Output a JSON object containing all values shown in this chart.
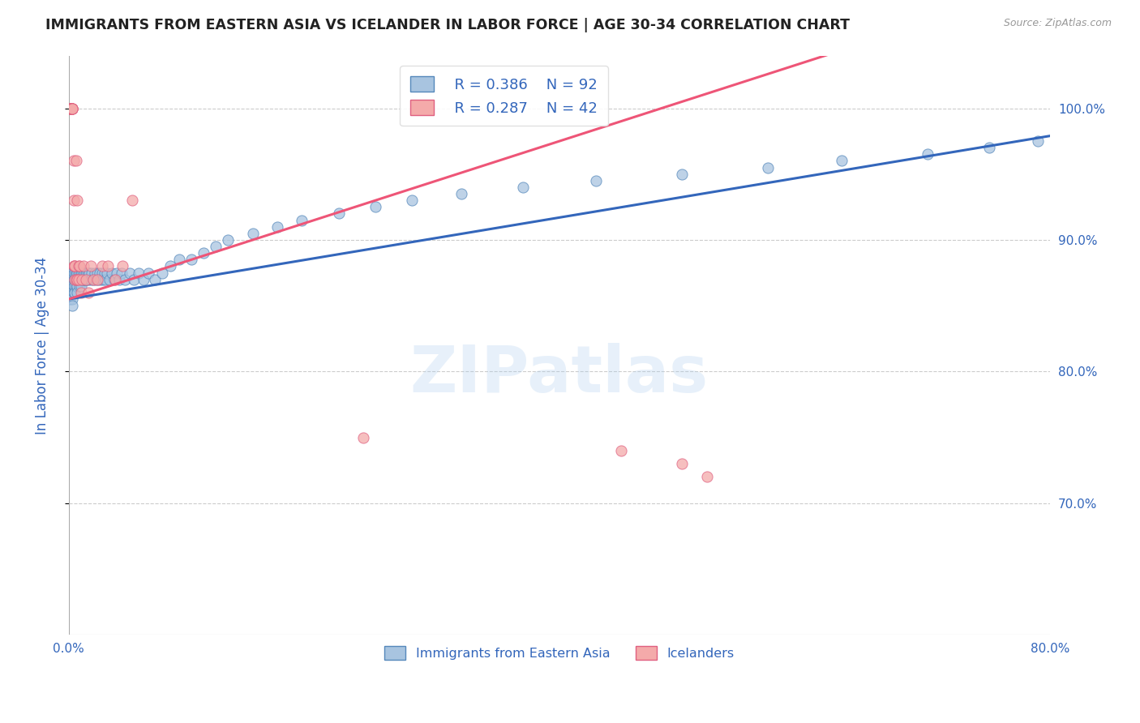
{
  "title": "IMMIGRANTS FROM EASTERN ASIA VS ICELANDER IN LABOR FORCE | AGE 30-34 CORRELATION CHART",
  "source": "Source: ZipAtlas.com",
  "ylabel_left": "In Labor Force | Age 30-34",
  "xlim": [
    0.0,
    0.8
  ],
  "ylim": [
    0.6,
    1.04
  ],
  "x_ticks": [
    0.0,
    0.8
  ],
  "x_tick_labels": [
    "0.0%",
    "80.0%"
  ],
  "y_ticks": [
    0.7,
    0.8,
    0.9,
    1.0
  ],
  "y_tick_labels": [
    "70.0%",
    "80.0%",
    "90.0%",
    "100.0%"
  ],
  "legend_r_blue": "R = 0.386",
  "legend_n_blue": "N = 92",
  "legend_r_pink": "R = 0.287",
  "legend_n_pink": "N = 42",
  "legend_label_blue": "Immigrants from Eastern Asia",
  "legend_label_pink": "Icelanders",
  "blue_fill": "#A8C4E0",
  "blue_edge": "#5588BB",
  "pink_fill": "#F4AAAA",
  "pink_edge": "#E06080",
  "blue_line": "#3366BB",
  "pink_line": "#EE5577",
  "title_color": "#222222",
  "axis_label_color": "#3366BB",
  "tick_color": "#3366BB",
  "grid_color": "#CCCCCC",
  "watermark_color": "#AACCEE",
  "watermark_alpha": 0.28,
  "watermark_text": "ZIPatlas",
  "blue_scatter_x": [
    0.001,
    0.002,
    0.002,
    0.003,
    0.003,
    0.003,
    0.003,
    0.004,
    0.004,
    0.004,
    0.004,
    0.005,
    0.005,
    0.005,
    0.005,
    0.006,
    0.006,
    0.006,
    0.006,
    0.007,
    0.007,
    0.007,
    0.008,
    0.008,
    0.009,
    0.009,
    0.009,
    0.01,
    0.01,
    0.01,
    0.011,
    0.011,
    0.012,
    0.012,
    0.013,
    0.013,
    0.014,
    0.014,
    0.015,
    0.015,
    0.016,
    0.016,
    0.017,
    0.018,
    0.019,
    0.02,
    0.021,
    0.022,
    0.023,
    0.024,
    0.025,
    0.026,
    0.027,
    0.028,
    0.029,
    0.03,
    0.031,
    0.033,
    0.035,
    0.037,
    0.039,
    0.041,
    0.043,
    0.046,
    0.05,
    0.053,
    0.057,
    0.061,
    0.065,
    0.07,
    0.076,
    0.083,
    0.09,
    0.1,
    0.11,
    0.12,
    0.13,
    0.15,
    0.17,
    0.19,
    0.22,
    0.25,
    0.28,
    0.32,
    0.37,
    0.43,
    0.5,
    0.57,
    0.63,
    0.7,
    0.75,
    0.79
  ],
  "blue_scatter_y": [
    0.855,
    0.875,
    0.865,
    0.875,
    0.86,
    0.855,
    0.85,
    0.875,
    0.87,
    0.865,
    0.86,
    0.875,
    0.87,
    0.865,
    0.86,
    0.875,
    0.875,
    0.87,
    0.865,
    0.875,
    0.865,
    0.86,
    0.875,
    0.87,
    0.875,
    0.87,
    0.865,
    0.875,
    0.87,
    0.865,
    0.875,
    0.87,
    0.875,
    0.87,
    0.875,
    0.87,
    0.875,
    0.87,
    0.875,
    0.87,
    0.875,
    0.87,
    0.875,
    0.87,
    0.875,
    0.87,
    0.875,
    0.87,
    0.875,
    0.87,
    0.875,
    0.87,
    0.875,
    0.87,
    0.875,
    0.87,
    0.875,
    0.87,
    0.875,
    0.87,
    0.875,
    0.87,
    0.875,
    0.87,
    0.875,
    0.87,
    0.875,
    0.87,
    0.875,
    0.87,
    0.875,
    0.88,
    0.885,
    0.885,
    0.89,
    0.895,
    0.9,
    0.905,
    0.91,
    0.915,
    0.92,
    0.925,
    0.93,
    0.935,
    0.94,
    0.945,
    0.95,
    0.955,
    0.96,
    0.965,
    0.97,
    0.975
  ],
  "pink_scatter_x": [
    0.001,
    0.001,
    0.001,
    0.002,
    0.002,
    0.002,
    0.002,
    0.003,
    0.003,
    0.003,
    0.003,
    0.003,
    0.004,
    0.004,
    0.004,
    0.005,
    0.005,
    0.005,
    0.006,
    0.006,
    0.007,
    0.007,
    0.008,
    0.008,
    0.009,
    0.01,
    0.011,
    0.012,
    0.014,
    0.016,
    0.018,
    0.02,
    0.023,
    0.027,
    0.032,
    0.038,
    0.044,
    0.052,
    0.45,
    0.5,
    0.52,
    0.24
  ],
  "pink_scatter_y": [
    1.0,
    1.0,
    1.0,
    1.0,
    1.0,
    1.0,
    1.0,
    1.0,
    1.0,
    1.0,
    1.0,
    1.0,
    0.93,
    0.88,
    0.96,
    0.88,
    0.88,
    0.87,
    0.96,
    0.87,
    0.93,
    0.87,
    0.88,
    0.87,
    0.88,
    0.86,
    0.87,
    0.88,
    0.87,
    0.86,
    0.88,
    0.87,
    0.87,
    0.88,
    0.88,
    0.87,
    0.88,
    0.93,
    0.74,
    0.73,
    0.72,
    0.75
  ]
}
